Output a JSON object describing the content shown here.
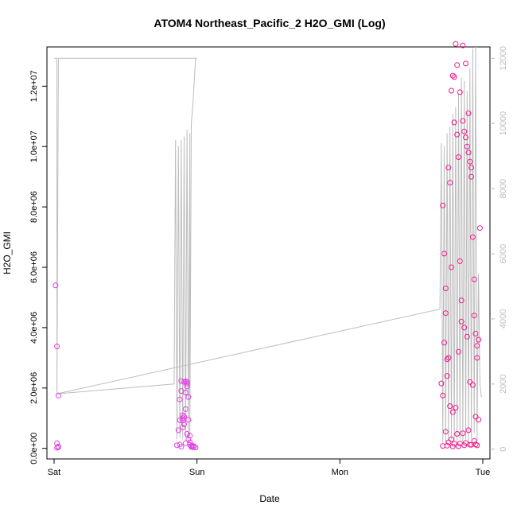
{
  "chart_data": {
    "type": "scatter",
    "title": "ATOM4 Northeast_Pacific_2 H2O_GMI (Log)",
    "xlabel": "Date",
    "ylabel": "H2O_GMI",
    "x_ticks": [
      {
        "label": "Sat",
        "value": 0
      },
      {
        "label": "Sun",
        "value": 1
      },
      {
        "label": "Mon",
        "value": 2
      },
      {
        "label": "Tue",
        "value": 3
      }
    ],
    "xlim": [
      -0.05,
      3.05
    ],
    "ylim": [
      -350000,
      13300000
    ],
    "y_ticks": [
      {
        "label": "0.0e+00",
        "value": 0
      },
      {
        "label": "2.0e+06",
        "value": 2000000
      },
      {
        "label": "4.0e+06",
        "value": 4000000
      },
      {
        "label": "6.0e+06",
        "value": 6000000
      },
      {
        "label": "8.0e+06",
        "value": 8000000
      },
      {
        "label": "1.0e+07",
        "value": 10000000
      },
      {
        "label": "1.2e+07",
        "value": 12000000
      }
    ],
    "y2lim": [
      -300,
      12350
    ],
    "y2_ticks": [
      {
        "label": "0",
        "value": 0
      },
      {
        "label": "2000",
        "value": 2000
      },
      {
        "label": "4000",
        "value": 4000
      },
      {
        "label": "6000",
        "value": 6000
      },
      {
        "label": "8000",
        "value": 8000
      },
      {
        "label": "10000",
        "value": 10000
      },
      {
        "label": "12000",
        "value": 12000
      }
    ],
    "grid": false,
    "colors": {
      "points_day1": "#e040e0",
      "points_day2": "#ee1a8a",
      "line": "#bdbdbd",
      "right_axis": "#bdbdbd"
    },
    "series": [
      {
        "type": "scatter",
        "axis": "left",
        "x": [
          0.01,
          0.02,
          0.03,
          0.02,
          0.03,
          0.02,
          0.03,
          0.86,
          0.87,
          0.88,
          0.89,
          0.88,
          0.9,
          0.91,
          0.89,
          0.92,
          0.9,
          0.93,
          0.91,
          0.92,
          0.94,
          0.93,
          0.95,
          0.96,
          0.94,
          0.97,
          0.95,
          0.98,
          0.99,
          0.93,
          0.94,
          0.92,
          0.96,
          0.97,
          0.95,
          0.91,
          0.9,
          0.89,
          0.88,
          0.92,
          0.93,
          0.9
        ],
        "y": [
          5400000,
          3380000,
          1750000,
          170000,
          60000,
          20000,
          40000,
          100000,
          600000,
          930000,
          1900000,
          1620000,
          1000000,
          2200000,
          2230000,
          1300000,
          1100000,
          2150000,
          800000,
          1850000,
          1700000,
          480000,
          420000,
          50000,
          300000,
          40000,
          120000,
          60000,
          30000,
          2200000,
          950000,
          170000,
          80000,
          90000,
          200000,
          1050000,
          700000,
          50000,
          130000,
          2220000,
          2050000,
          920000
        ]
      },
      {
        "type": "scatter",
        "axis": "left",
        "x": [
          2.71,
          2.72,
          2.73,
          2.74,
          2.75,
          2.76,
          2.77,
          2.78,
          2.79,
          2.8,
          2.81,
          2.82,
          2.83,
          2.84,
          2.85,
          2.86,
          2.87,
          2.88,
          2.89,
          2.9,
          2.91,
          2.92,
          2.93,
          2.94,
          2.95,
          2.96,
          2.97,
          2.98,
          2.72,
          2.74,
          2.76,
          2.78,
          2.8,
          2.82,
          2.84,
          2.86,
          2.88,
          2.9,
          2.92,
          2.94,
          2.96,
          2.73,
          2.75,
          2.77,
          2.79,
          2.81,
          2.83,
          2.85,
          2.87,
          2.89,
          2.91,
          2.93,
          2.95,
          2.97,
          2.74,
          2.78,
          2.82,
          2.86,
          2.9,
          2.94,
          2.76,
          2.8,
          2.84,
          2.88,
          2.92,
          2.96,
          2.72,
          2.75,
          2.79,
          2.83,
          2.87,
          2.91,
          2.95
        ],
        "y": [
          2150000,
          8050000,
          6450000,
          4480000,
          2400000,
          9300000,
          8800000,
          6000000,
          12350000,
          12300000,
          13400000,
          12700000,
          9650000,
          6200000,
          4900000,
          10850000,
          10500000,
          10300000,
          10000000,
          9800000,
          9500000,
          9300000,
          7000000,
          5600000,
          3800000,
          3400000,
          3600000,
          7300000,
          1750000,
          5300000,
          3000000,
          11850000,
          10800000,
          10400000,
          11800000,
          13350000,
          12750000,
          11100000,
          9000000,
          4400000,
          3000000,
          3500000,
          2950000,
          1400000,
          1200000,
          1350000,
          3200000,
          4200000,
          4000000,
          3700000,
          2200000,
          2100000,
          1050000,
          950000,
          550000,
          300000,
          480000,
          500000,
          600000,
          250000,
          200000,
          150000,
          160000,
          180000,
          120000,
          100000,
          80000,
          90000,
          60000,
          70000,
          100000,
          120000,
          130000
        ]
      },
      {
        "type": "line",
        "axis": "right",
        "x": [
          0.0,
          0.02,
          0.02,
          0.03,
          1.0,
          0.99,
          0.97,
          0.96,
          0.95,
          0.95,
          0.94,
          0.93,
          0.92,
          0.91,
          0.9,
          0.89,
          0.88,
          0.87,
          0.86,
          0.85,
          0.84,
          0.02,
          2.7,
          2.71,
          2.72,
          2.73,
          2.74,
          2.75,
          2.76,
          2.77,
          2.78,
          2.79,
          2.8,
          2.81,
          2.82,
          2.83,
          2.84,
          2.85,
          2.86,
          2.87,
          2.88,
          2.89,
          2.9,
          2.91,
          2.92,
          2.93,
          2.94,
          2.95,
          2.96,
          2.97,
          2.98,
          2.99
        ],
        "y": [
          12000,
          12000,
          1700,
          12000,
          12000,
          12000,
          10500,
          10000,
          400,
          9700,
          300,
          9800,
          350,
          9600,
          300,
          9500,
          350,
          9300,
          300,
          9500,
          2000,
          1700,
          4300,
          9400,
          200,
          9300,
          200,
          9700,
          250,
          9900,
          300,
          10300,
          250,
          10500,
          200,
          10900,
          300,
          11400,
          200,
          11300,
          300,
          11000,
          200,
          11700,
          300,
          12300,
          500,
          12400,
          250,
          5400,
          2000,
          1600
        ]
      }
    ]
  }
}
